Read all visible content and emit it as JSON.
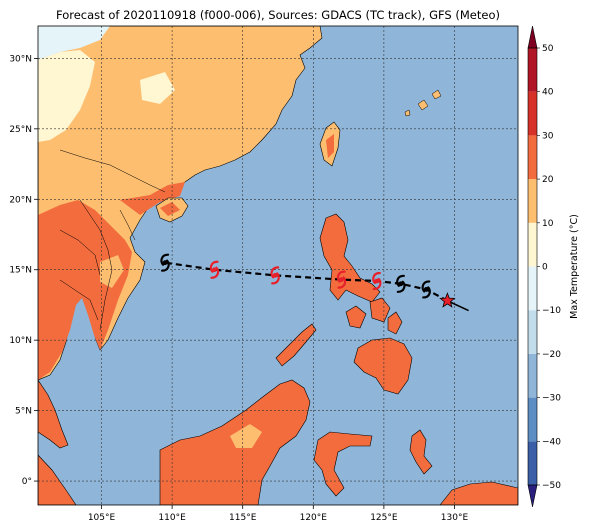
{
  "title": "Forecast of 2020110918 (f000-006), Sources: GDACS (TC track), GFS (Meteo)",
  "lon_ticks": [
    "105°E",
    "110°E",
    "115°E",
    "120°E",
    "125°E",
    "130°E"
  ],
  "lat_ticks": [
    "30°N",
    "25°N",
    "20°N",
    "15°N",
    "10°N",
    "5°N",
    "0°"
  ],
  "colorbar": {
    "label": "Max Temperature (°C)",
    "ticks": [
      "50",
      "40",
      "30",
      "20",
      "10",
      "0",
      "−10",
      "−20",
      "−30",
      "−40",
      "−50"
    ],
    "colors": [
      "#2a1e7e",
      "#3a5fa8",
      "#5c8ec4",
      "#8fb6d9",
      "#c1dceb",
      "#e4f4f8",
      "#fff6d2",
      "#fdbe70",
      "#f26c3e",
      "#d63228",
      "#b11626",
      "#7d0023"
    ]
  },
  "colors": {
    "ocean": "#8fb6d9",
    "land_warm": "#fdbe70",
    "land_hot": "#f26c3e",
    "land_mild": "#fff6d2",
    "land_cool": "#e4f4f8"
  },
  "track": {
    "past_symbol": "typhoon-symbol-black",
    "forecast_symbol": "typhoon-symbol-red",
    "current_symbol": "red-star",
    "points": [
      {
        "lon": 129.5,
        "lat": 12.8,
        "kind": "current"
      },
      {
        "lon": 128.0,
        "lat": 13.6,
        "kind": "past"
      },
      {
        "lon": 126.2,
        "lat": 14.0,
        "kind": "past"
      },
      {
        "lon": 124.5,
        "lat": 14.2,
        "kind": "forecast"
      },
      {
        "lon": 122.0,
        "lat": 14.3,
        "kind": "forecast"
      },
      {
        "lon": 117.3,
        "lat": 14.6,
        "kind": "forecast"
      },
      {
        "lon": 113.0,
        "lat": 15.0,
        "kind": "forecast"
      },
      {
        "lon": 109.5,
        "lat": 15.5,
        "kind": "past"
      }
    ]
  }
}
